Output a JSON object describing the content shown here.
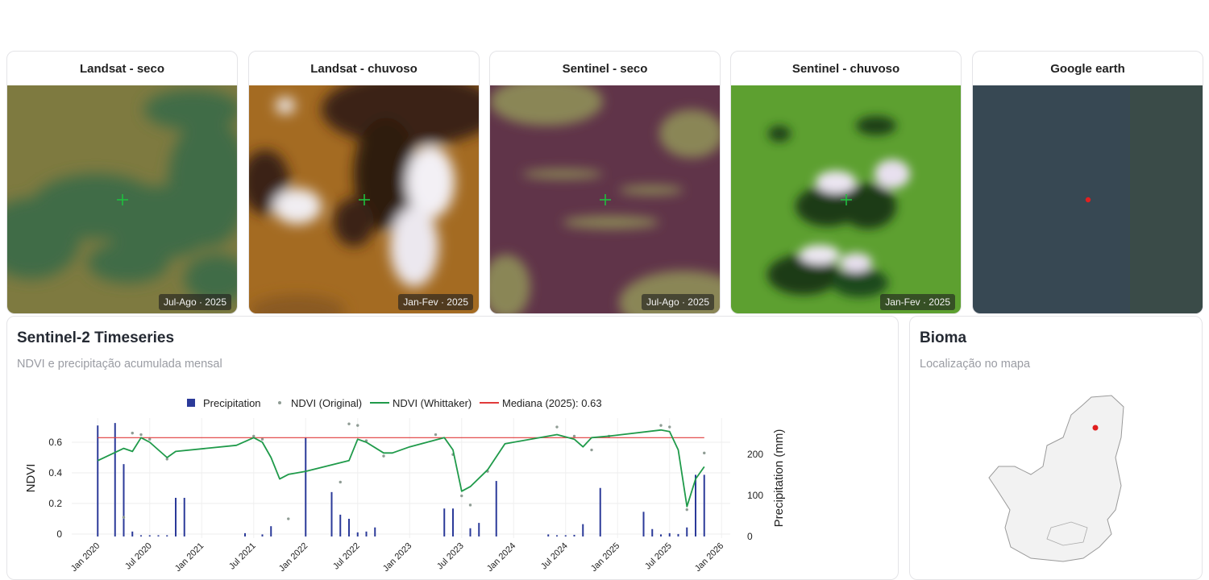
{
  "image_cards": [
    {
      "title": "Landsat - seco",
      "badge": "Jul-Ago · 2025"
    },
    {
      "title": "Landsat - chuvoso",
      "badge": "Jan-Fev · 2025"
    },
    {
      "title": "Sentinel - seco",
      "badge": "Jul-Ago · 2025"
    },
    {
      "title": "Sentinel - chuvoso",
      "badge": "Jan-Fev · 2025"
    },
    {
      "title": "Google earth"
    }
  ],
  "timeseries": {
    "title": "Sentinel-2 Timeseries",
    "subtitle": "NDVI e precipitação acumulada mensal"
  },
  "chart_data": {
    "type": "combo",
    "ylabel": "NDVI",
    "y2label": "Precipitation (mm)",
    "xlim": [
      "2019-10",
      "2026-02"
    ],
    "xticks": [
      {
        "value": "2020-01",
        "label": "Jan 2020"
      },
      {
        "value": "2020-07",
        "label": "Jul 2020"
      },
      {
        "value": "2021-01",
        "label": "Jan 2021"
      },
      {
        "value": "2021-07",
        "label": "Jul 2021"
      },
      {
        "value": "2022-01",
        "label": "Jan 2022"
      },
      {
        "value": "2022-07",
        "label": "Jul 2022"
      },
      {
        "value": "2023-01",
        "label": "Jan 2023"
      },
      {
        "value": "2023-07",
        "label": "Jul 2023"
      },
      {
        "value": "2024-01",
        "label": "Jan 2024"
      },
      {
        "value": "2024-07",
        "label": "Jul 2024"
      },
      {
        "value": "2025-01",
        "label": "Jan 2025"
      },
      {
        "value": "2025-07",
        "label": "Jul 2025"
      },
      {
        "value": "2026-01",
        "label": "Jan 2026"
      }
    ],
    "ylim": [
      -0.026,
      0.758
    ],
    "yticks": [
      0,
      0.2,
      0.4,
      0.6
    ],
    "y2lim": [
      -4,
      288
    ],
    "y2ticks": [
      0,
      100,
      200
    ],
    "grid": true,
    "legend": "top",
    "series": [
      {
        "name": "Precipitation",
        "type": "bar",
        "axis": "y2",
        "color": "#2b3a99",
        "x": [
          "2020-01",
          "2020-03",
          "2020-04",
          "2020-05",
          "2020-06",
          "2020-07",
          "2020-08",
          "2020-09",
          "2020-10",
          "2020-11",
          "2021-06",
          "2021-08",
          "2021-09",
          "2022-01",
          "2022-04",
          "2022-05",
          "2022-06",
          "2022-07",
          "2022-08",
          "2022-09",
          "2023-05",
          "2023-06",
          "2023-08",
          "2023-09",
          "2023-11",
          "2024-05",
          "2024-06",
          "2024-07",
          "2024-08",
          "2024-09",
          "2024-11",
          "2025-04",
          "2025-05",
          "2025-06",
          "2025-07",
          "2025-08",
          "2025-09",
          "2025-10",
          "2025-11"
        ],
        "values": [
          270,
          276,
          176,
          12,
          3,
          3,
          3,
          3,
          94,
          94,
          8,
          5,
          25,
          240,
          108,
          53,
          43,
          10,
          12,
          22,
          68,
          68,
          20,
          33,
          135,
          5,
          3,
          3,
          4,
          30,
          118,
          60,
          18,
          5,
          8,
          6,
          22,
          150,
          150
        ]
      },
      {
        "name": "NDVI (Original)",
        "type": "scatter",
        "color": "#8f9c94",
        "x": [
          "2020-04",
          "2020-05",
          "2020-06",
          "2020-07",
          "2020-09",
          "2021-07",
          "2021-08",
          "2021-11",
          "2022-05",
          "2022-06",
          "2022-07",
          "2022-08",
          "2022-10",
          "2023-04",
          "2023-06",
          "2023-07",
          "2023-08",
          "2023-10",
          "2024-06",
          "2024-08",
          "2024-10",
          "2024-12",
          "2025-06",
          "2025-07",
          "2025-09",
          "2025-11"
        ],
        "values": [
          0.11,
          0.66,
          0.65,
          0.62,
          0.49,
          0.64,
          0.62,
          0.1,
          0.34,
          0.72,
          0.71,
          0.61,
          0.51,
          0.65,
          0.52,
          0.25,
          0.19,
          0.41,
          0.7,
          0.64,
          0.55,
          0.64,
          0.71,
          0.7,
          0.16,
          0.53
        ]
      },
      {
        "name": "NDVI (Whittaker)",
        "type": "line",
        "color": "#1f9a4a",
        "x": [
          "2020-01",
          "2020-04",
          "2020-05",
          "2020-06",
          "2020-07",
          "2020-08",
          "2020-09",
          "2020-10",
          "2021-05",
          "2021-07",
          "2021-08",
          "2021-09",
          "2021-10",
          "2021-11",
          "2022-01",
          "2022-06",
          "2022-07",
          "2022-08",
          "2022-10",
          "2022-11",
          "2023-01",
          "2023-05",
          "2023-06",
          "2023-07",
          "2023-08",
          "2023-10",
          "2023-12",
          "2024-06",
          "2024-08",
          "2024-09",
          "2024-10",
          "2024-12",
          "2025-06",
          "2025-07",
          "2025-08",
          "2025-09",
          "2025-10",
          "2025-11"
        ],
        "values": [
          0.48,
          0.56,
          0.54,
          0.63,
          0.6,
          0.55,
          0.5,
          0.54,
          0.58,
          0.63,
          0.6,
          0.5,
          0.36,
          0.39,
          0.41,
          0.48,
          0.62,
          0.6,
          0.53,
          0.53,
          0.57,
          0.63,
          0.55,
          0.28,
          0.31,
          0.42,
          0.59,
          0.65,
          0.62,
          0.57,
          0.63,
          0.64,
          0.68,
          0.67,
          0.55,
          0.18,
          0.36,
          0.44
        ]
      },
      {
        "name": "Mediana (2025): 0.63",
        "type": "hline",
        "color": "#e03a3a",
        "x": [
          "2020-01",
          "2025-11"
        ],
        "values": [
          0.63,
          0.63
        ]
      }
    ]
  },
  "bioma": {
    "title": "Bioma",
    "subtitle": "Localização no mapa"
  }
}
